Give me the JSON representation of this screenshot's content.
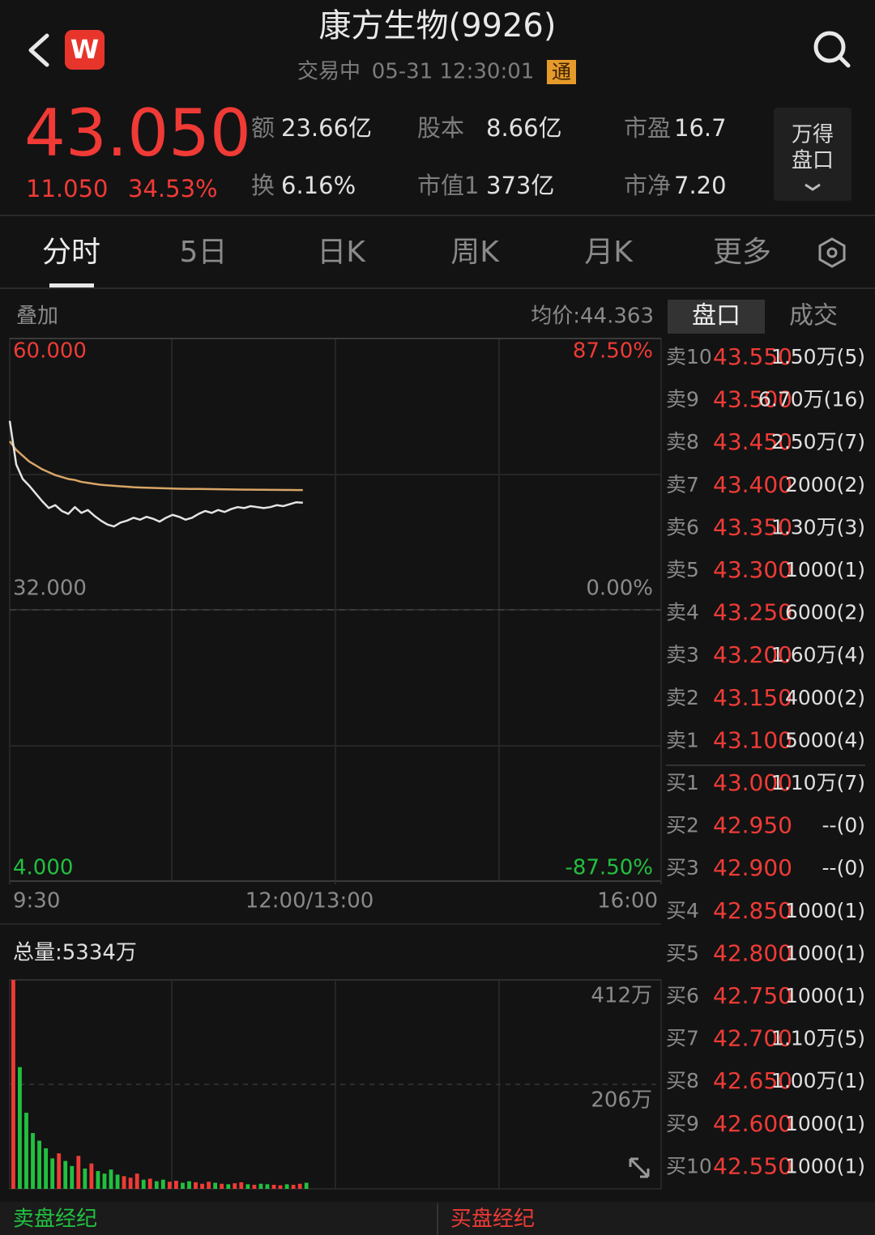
{
  "header": {
    "logo": "W",
    "title": "康方生物(9926)",
    "status": "交易中",
    "datetime": "05-31 12:30:01",
    "badge": "通"
  },
  "quote": {
    "price": "43.050",
    "change": "11.050",
    "change_pct": "34.53%",
    "stats": [
      {
        "label": "额",
        "value": "23.66亿"
      },
      {
        "label": "股本",
        "value": "8.66亿"
      },
      {
        "label": "市盈",
        "value": "16.7"
      },
      {
        "label": "换",
        "value": "6.16%"
      },
      {
        "label": "市值1",
        "value": "373亿"
      },
      {
        "label": "市净",
        "value": "7.20"
      }
    ],
    "button": [
      "万得",
      "盘口"
    ]
  },
  "tabs": [
    "分时",
    "5日",
    "日K",
    "周K",
    "月K",
    "更多"
  ],
  "panel": {
    "overlay": "叠加",
    "avg_price": "均价:44.363",
    "book_tabs": [
      "盘口",
      "成交"
    ]
  },
  "chart_data": [
    {
      "type": "line",
      "x": [
        0,
        3,
        6,
        9,
        12,
        15,
        18,
        21,
        24,
        27,
        30,
        33,
        36,
        39,
        42,
        45,
        48,
        51,
        54,
        57,
        60,
        63,
        66,
        69,
        72,
        75,
        78,
        81,
        84,
        87,
        90,
        93,
        96,
        99,
        102,
        105,
        108,
        111,
        114,
        117,
        120,
        123,
        126,
        129,
        132,
        135
      ],
      "xlim": [
        0,
        300
      ],
      "xticks": [
        {
          "value": 0,
          "label": "9:30"
        },
        {
          "value": 150,
          "label": "12:00/13:00"
        },
        {
          "value": 300,
          "label": "16:00"
        }
      ],
      "ylim": [
        4,
        60
      ],
      "yticks": [
        {
          "value": 60,
          "label": "60.000"
        },
        {
          "value": 32,
          "label": "32.000"
        },
        {
          "value": 4,
          "label": "4.000"
        }
      ],
      "y2lim": [
        -87.5,
        87.5
      ],
      "y2ticks": [
        {
          "value": 87.5,
          "label": "87.50%"
        },
        {
          "value": 0,
          "label": "0.00%"
        },
        {
          "value": -87.5,
          "label": "-87.50%"
        }
      ],
      "series": [
        {
          "color": "#e4e4e4",
          "values": [
            51.5,
            47,
            45.5,
            44.8,
            44,
            43.2,
            42.5,
            42.8,
            42.2,
            41.9,
            42.6,
            42,
            42.3,
            41.7,
            41.2,
            40.8,
            40.6,
            41,
            41.2,
            41.5,
            41.3,
            41.6,
            41.4,
            41.1,
            41.5,
            41.8,
            41.6,
            41.3,
            41.5,
            41.9,
            42.2,
            42,
            42.3,
            42.1,
            42.4,
            42.6,
            42.5,
            42.7,
            42.6,
            42.5,
            42.6,
            42.8,
            42.7,
            42.9,
            43.1,
            43.05
          ]
        },
        {
          "color": "#d8a566",
          "values": [
            49.4,
            48.5,
            47.9,
            47.3,
            46.9,
            46.5,
            46.2,
            45.9,
            45.7,
            45.5,
            45.4,
            45.2,
            45.1,
            45,
            44.9,
            44.85,
            44.8,
            44.75,
            44.7,
            44.65,
            44.62,
            44.6,
            44.58,
            44.56,
            44.54,
            44.52,
            44.5,
            44.49,
            44.48,
            44.47,
            44.46,
            44.45,
            44.44,
            44.43,
            44.42,
            44.41,
            44.4,
            44.4,
            44.39,
            44.39,
            44.38,
            44.38,
            44.37,
            44.37,
            44.36,
            44.363
          ]
        }
      ]
    },
    {
      "type": "bar",
      "title": "总量:5334万",
      "x": [
        0,
        3,
        6,
        9,
        12,
        15,
        18,
        21,
        24,
        27,
        30,
        33,
        36,
        39,
        42,
        45,
        48,
        51,
        54,
        57,
        60,
        63,
        66,
        69,
        72,
        75,
        78,
        81,
        84,
        87,
        90,
        93,
        96,
        99,
        102,
        105,
        108,
        111,
        114,
        117,
        120,
        123,
        126,
        129,
        132,
        135
      ],
      "xlim": [
        0,
        300
      ],
      "ylim": [
        0,
        412
      ],
      "yticks": [
        {
          "value": 412,
          "label": "412万"
        },
        {
          "value": 206,
          "label": "206万"
        }
      ],
      "up_color": "#ee3b36",
      "down_color": "#22c040",
      "values": [
        412,
        240,
        150,
        110,
        95,
        80,
        60,
        70,
        55,
        45,
        65,
        40,
        50,
        35,
        30,
        38,
        28,
        25,
        22,
        30,
        18,
        20,
        15,
        18,
        14,
        16,
        12,
        15,
        13,
        10,
        14,
        12,
        10,
        9,
        11,
        13,
        9,
        8,
        10,
        9,
        8,
        7,
        9,
        8,
        10,
        12
      ]
    }
  ],
  "order_book": [
    {
      "label": "卖10",
      "price": "43.550",
      "volume": "1.50万(5)"
    },
    {
      "label": "卖9",
      "price": "43.500",
      "volume": "6.70万(16)"
    },
    {
      "label": "卖8",
      "price": "43.450",
      "volume": "2.50万(7)"
    },
    {
      "label": "卖7",
      "price": "43.400",
      "volume": "2000(2)"
    },
    {
      "label": "卖6",
      "price": "43.350",
      "volume": "1.30万(3)"
    },
    {
      "label": "卖5",
      "price": "43.300",
      "volume": "1000(1)"
    },
    {
      "label": "卖4",
      "price": "43.250",
      "volume": "6000(2)"
    },
    {
      "label": "卖3",
      "price": "43.200",
      "volume": "1.60万(4)"
    },
    {
      "label": "卖2",
      "price": "43.150",
      "volume": "4000(2)"
    },
    {
      "label": "卖1",
      "price": "43.100",
      "volume": "5000(4)"
    },
    {
      "label": "买1",
      "price": "43.000",
      "volume": "1.10万(7)"
    },
    {
      "label": "买2",
      "price": "42.950",
      "volume": "--(0)"
    },
    {
      "label": "买3",
      "price": "42.900",
      "volume": "--(0)"
    },
    {
      "label": "买4",
      "price": "42.850",
      "volume": "1000(1)"
    },
    {
      "label": "买5",
      "price": "42.800",
      "volume": "1000(1)"
    },
    {
      "label": "买6",
      "price": "42.750",
      "volume": "1000(1)"
    },
    {
      "label": "买7",
      "price": "42.700",
      "volume": "1.10万(5)"
    },
    {
      "label": "买8",
      "price": "42.650",
      "volume": "1.00万(1)"
    },
    {
      "label": "买9",
      "price": "42.600",
      "volume": "1000(1)"
    },
    {
      "label": "买10",
      "price": "42.550",
      "volume": "1000(1)"
    }
  ],
  "footer": [
    "卖盘经纪",
    "买盘经纪"
  ]
}
